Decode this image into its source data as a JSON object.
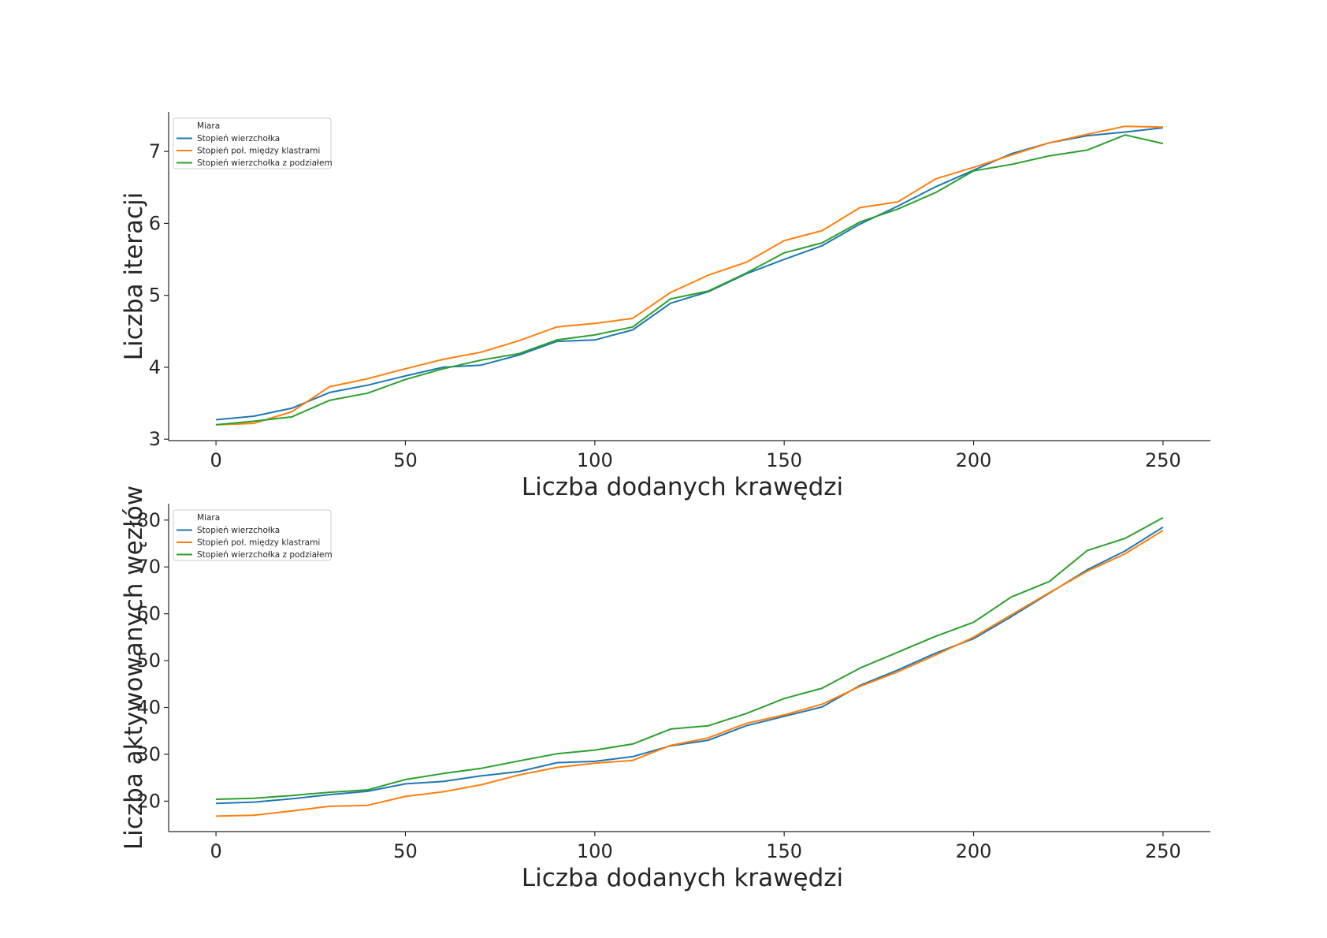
{
  "colors": {
    "series": [
      "#1f77b4",
      "#ff7f0e",
      "#2ca02c"
    ],
    "axis": "#262626",
    "legend_border": "#cccccc"
  },
  "chart_data": [
    {
      "type": "line",
      "xlabel": "Liczba dodanych krawędzi",
      "ylabel": "Liczba iteracji",
      "xlim": [
        -12.5,
        262.5
      ],
      "ylim": [
        2.98,
        7.55
      ],
      "xticks": [
        0,
        50,
        100,
        150,
        200,
        250
      ],
      "yticks": [
        3,
        4,
        5,
        6,
        7
      ],
      "legend": {
        "title": "Miara",
        "position": "top-left"
      },
      "x": [
        0,
        10,
        20,
        30,
        40,
        50,
        60,
        70,
        80,
        90,
        100,
        110,
        120,
        130,
        140,
        150,
        160,
        170,
        180,
        190,
        200,
        210,
        220,
        230,
        240,
        250
      ],
      "series": [
        {
          "name": "Stopień wierzchołka",
          "values": [
            3.27,
            3.32,
            3.43,
            3.65,
            3.75,
            3.88,
            4.0,
            4.03,
            4.17,
            4.36,
            4.38,
            4.52,
            4.89,
            5.05,
            5.3,
            5.5,
            5.69,
            5.99,
            6.24,
            6.51,
            6.74,
            6.97,
            7.12,
            7.22,
            7.27,
            7.33
          ]
        },
        {
          "name": "Stopień poł. między klastrami",
          "values": [
            3.2,
            3.22,
            3.38,
            3.73,
            3.84,
            3.98,
            4.11,
            4.21,
            4.37,
            4.56,
            4.61,
            4.68,
            5.04,
            5.28,
            5.46,
            5.76,
            5.9,
            6.22,
            6.3,
            6.62,
            6.78,
            6.95,
            7.12,
            7.24,
            7.35,
            7.34
          ]
        },
        {
          "name": "Stopień wierzchołka z podziałem",
          "values": [
            3.2,
            3.25,
            3.31,
            3.54,
            3.64,
            3.83,
            3.98,
            4.1,
            4.19,
            4.38,
            4.45,
            4.56,
            4.95,
            5.06,
            5.31,
            5.59,
            5.73,
            6.02,
            6.2,
            6.43,
            6.73,
            6.82,
            6.94,
            7.02,
            7.23,
            7.11
          ]
        }
      ]
    },
    {
      "type": "line",
      "xlabel": "Liczba dodanych krawędzi",
      "ylabel": "Liczba aktywowanych węzłów",
      "xlim": [
        -12.5,
        262.5
      ],
      "ylim": [
        13.5,
        83.5
      ],
      "xticks": [
        0,
        50,
        100,
        150,
        200,
        250
      ],
      "yticks": [
        20,
        30,
        40,
        50,
        60,
        70,
        80
      ],
      "legend": {
        "title": "Miara",
        "position": "top-left"
      },
      "x": [
        0,
        10,
        20,
        30,
        40,
        50,
        60,
        70,
        80,
        90,
        100,
        110,
        120,
        130,
        140,
        150,
        160,
        170,
        180,
        190,
        200,
        210,
        220,
        230,
        240,
        250
      ],
      "series": [
        {
          "name": "Stopień wierzchołka",
          "values": [
            19.5,
            19.8,
            20.5,
            21.4,
            22.1,
            23.7,
            24.2,
            25.4,
            26.3,
            28.2,
            28.5,
            29.5,
            31.8,
            33.0,
            36.1,
            38.1,
            40.1,
            44.7,
            48.0,
            51.6,
            54.7,
            59.4,
            64.4,
            69.4,
            73.4,
            78.5
          ]
        },
        {
          "name": "Stopień poł. między klastrami",
          "values": [
            16.8,
            17.0,
            17.9,
            18.9,
            19.1,
            21.0,
            22.0,
            23.5,
            25.6,
            27.2,
            28.1,
            28.7,
            31.9,
            33.5,
            36.6,
            38.4,
            40.7,
            44.5,
            47.6,
            51.2,
            55.0,
            59.8,
            64.5,
            69.1,
            72.8,
            77.8
          ]
        },
        {
          "name": "Stopień wierzchołka z podziałem",
          "values": [
            20.4,
            20.6,
            21.2,
            21.9,
            22.4,
            24.6,
            25.9,
            27.0,
            28.6,
            30.1,
            30.9,
            32.2,
            35.4,
            36.1,
            38.7,
            41.9,
            44.1,
            48.4,
            51.8,
            55.2,
            58.2,
            63.6,
            66.9,
            73.5,
            76.1,
            80.5
          ]
        }
      ]
    }
  ]
}
